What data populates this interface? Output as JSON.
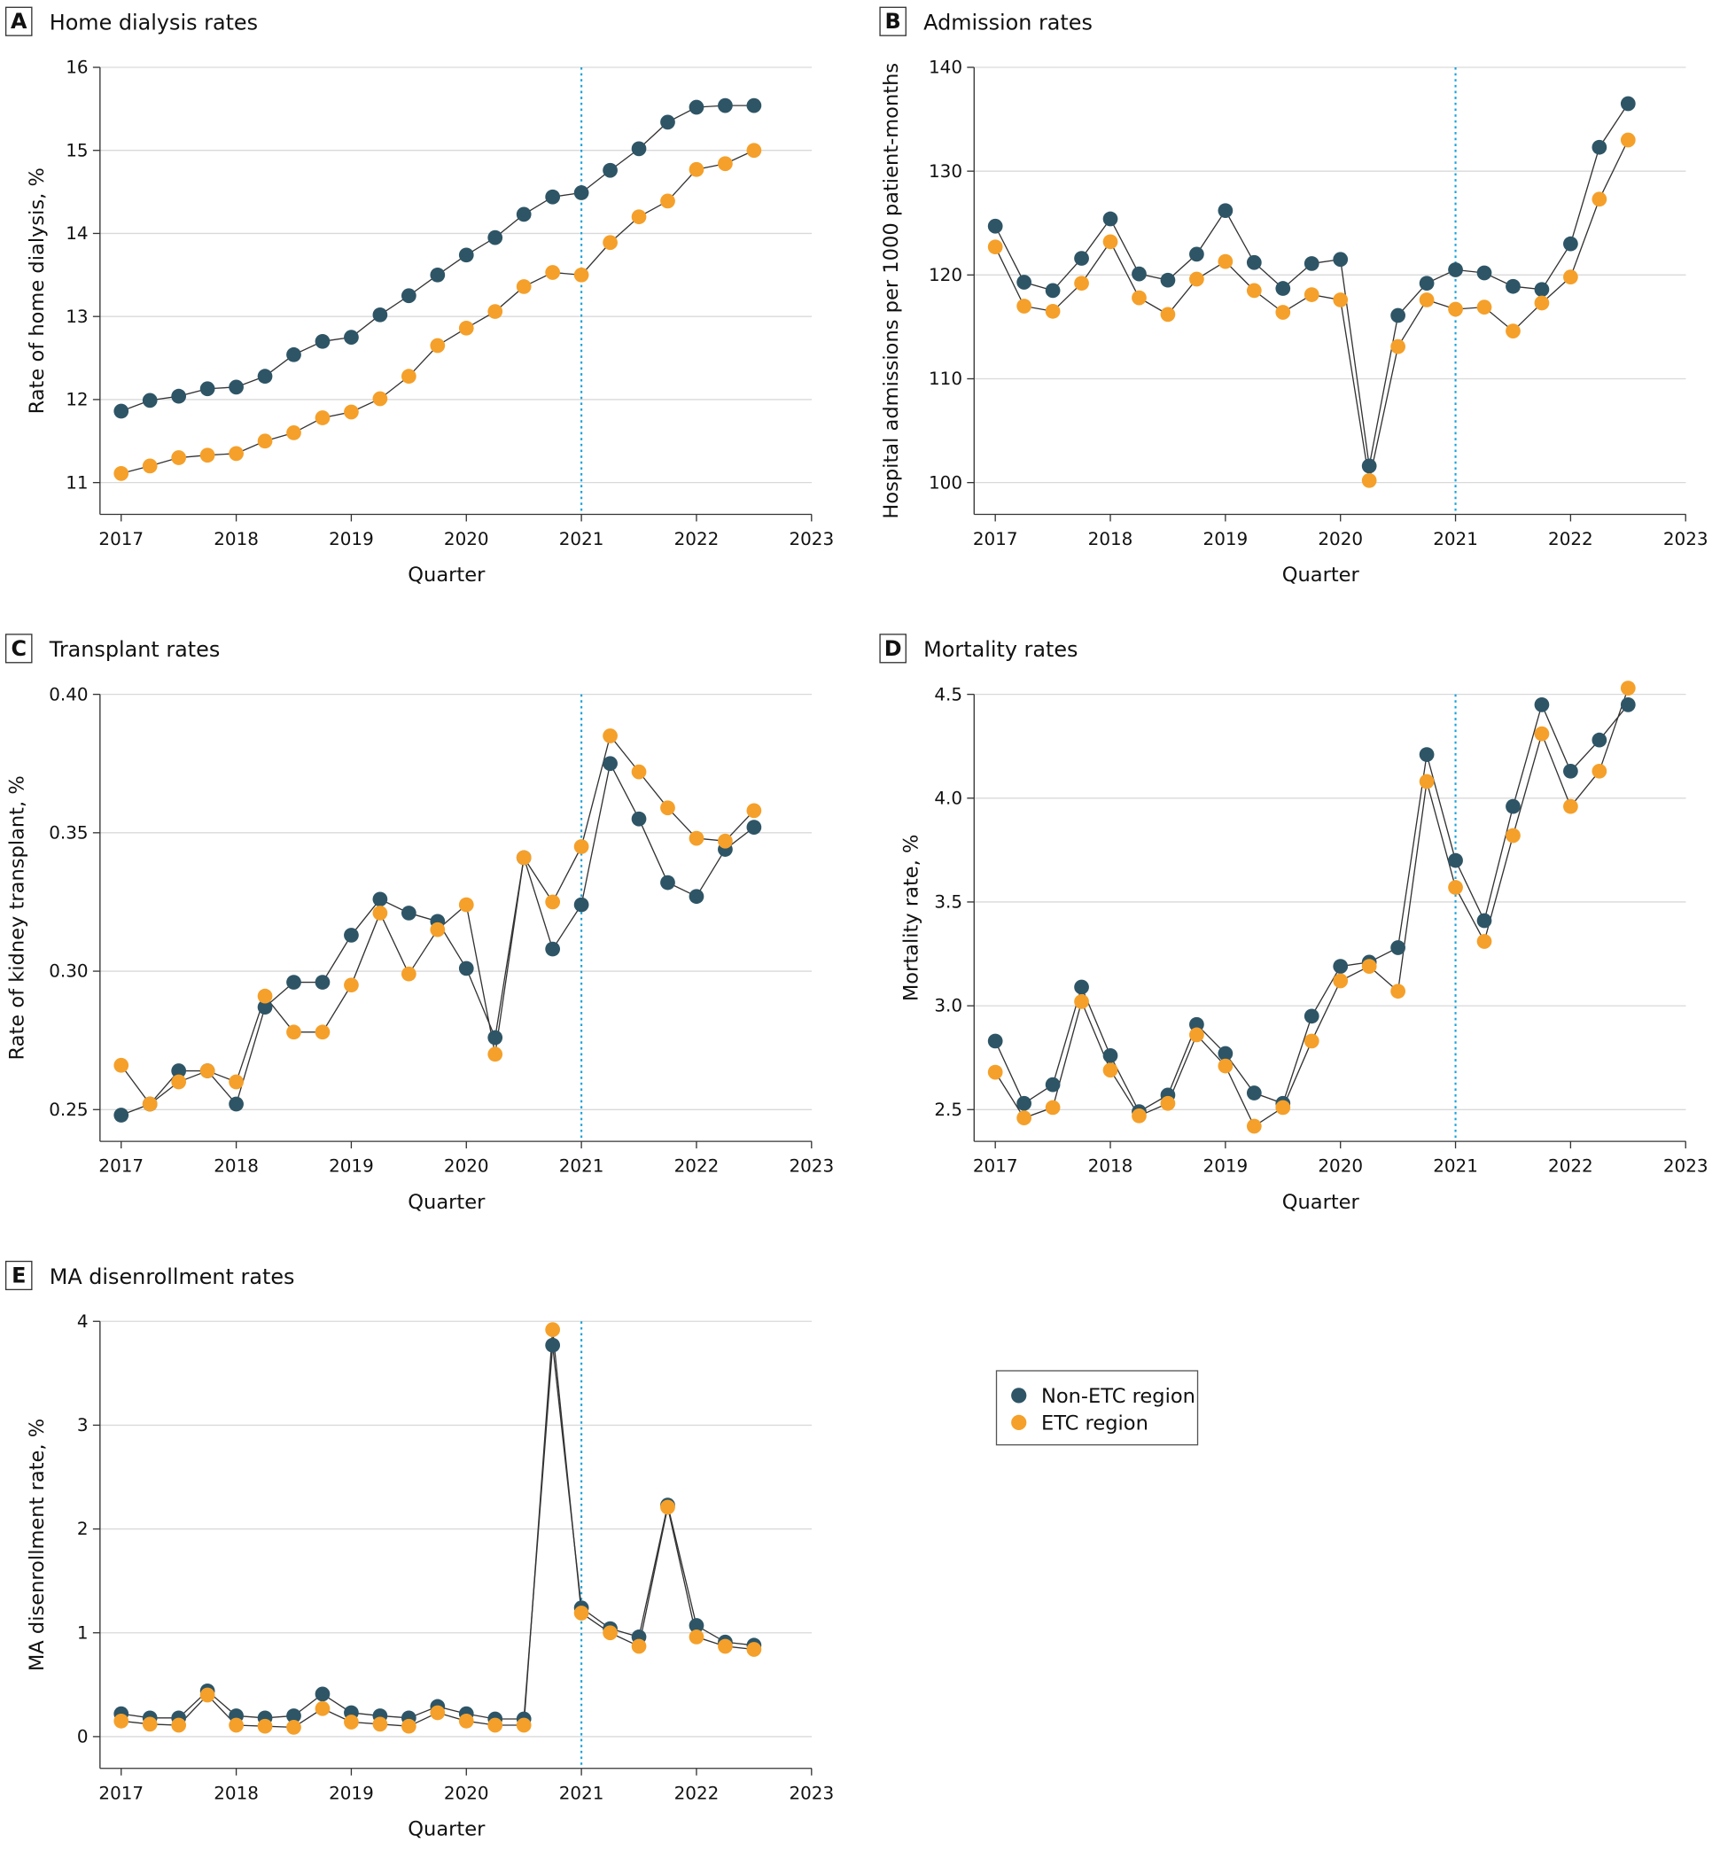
{
  "colors": {
    "non_etc": "#2e5566",
    "etc": "#f5a02a",
    "policy_line": "#1aa3dc",
    "grid": "#d9d9d9"
  },
  "legend": {
    "items": [
      {
        "label": "Non-ETC region",
        "color": "#2e5566"
      },
      {
        "label": "ETC region",
        "color": "#f5a02a"
      }
    ]
  },
  "chart_data": [
    {
      "panel": "A",
      "title": "Home dialysis rates",
      "type": "line",
      "xlabel": "Quarter",
      "ylabel": "Rate of home dialysis, %",
      "xticks": [
        2017,
        2018,
        2019,
        2020,
        2021,
        2022,
        2023
      ],
      "yticks": [
        11,
        12,
        13,
        14,
        15,
        16
      ],
      "ylim": [
        11,
        16
      ],
      "policy_x": 2021,
      "x": [
        2017,
        2017.25,
        2017.5,
        2017.75,
        2018,
        2018.25,
        2018.5,
        2018.75,
        2019,
        2019.25,
        2019.5,
        2019.75,
        2020,
        2020.25,
        2020.5,
        2020.75,
        2021,
        2021.25,
        2021.5,
        2021.75,
        2022,
        2022.25,
        2022.5
      ],
      "series": [
        {
          "name": "Non-ETC region",
          "values": [
            11.86,
            11.99,
            12.04,
            12.13,
            12.15,
            12.28,
            12.54,
            12.7,
            12.75,
            13.02,
            13.25,
            13.5,
            13.74,
            13.95,
            14.23,
            14.44,
            14.49,
            14.76,
            15.02,
            15.34,
            15.52,
            15.54,
            15.54
          ]
        },
        {
          "name": "ETC region",
          "values": [
            11.11,
            11.2,
            11.3,
            11.33,
            11.35,
            11.5,
            11.6,
            11.78,
            11.85,
            12.01,
            12.28,
            12.65,
            12.86,
            13.06,
            13.36,
            13.53,
            13.5,
            13.89,
            14.2,
            14.39,
            14.77,
            14.84,
            15.0
          ]
        }
      ]
    },
    {
      "panel": "B",
      "title": "Admission rates",
      "type": "line",
      "xlabel": "Quarter",
      "ylabel": "Hospital admissions per 1000 patient-months",
      "xticks": [
        2017,
        2018,
        2019,
        2020,
        2021,
        2022,
        2023
      ],
      "yticks": [
        100,
        110,
        120,
        130,
        140
      ],
      "ylim": [
        100,
        140
      ],
      "policy_x": 2021,
      "x": [
        2017,
        2017.25,
        2017.5,
        2017.75,
        2018,
        2018.25,
        2018.5,
        2018.75,
        2019,
        2019.25,
        2019.5,
        2019.75,
        2020,
        2020.25,
        2020.5,
        2020.75,
        2021,
        2021.25,
        2021.5,
        2021.75,
        2022,
        2022.25,
        2022.5
      ],
      "series": [
        {
          "name": "Non-ETC region",
          "values": [
            124.7,
            119.3,
            118.5,
            121.6,
            125.4,
            120.1,
            119.5,
            122.0,
            126.2,
            121.2,
            118.7,
            121.1,
            121.5,
            101.6,
            116.1,
            119.2,
            120.5,
            120.2,
            118.9,
            118.6,
            123.0,
            132.3,
            136.5
          ]
        },
        {
          "name": "ETC region",
          "values": [
            122.7,
            117.0,
            116.5,
            119.2,
            123.2,
            117.8,
            116.2,
            119.6,
            121.3,
            118.5,
            116.4,
            118.1,
            117.6,
            100.2,
            113.1,
            117.6,
            116.7,
            116.9,
            114.6,
            117.3,
            119.8,
            127.3,
            133.0
          ]
        }
      ]
    },
    {
      "panel": "C",
      "title": "Transplant rates",
      "type": "line",
      "xlabel": "Quarter",
      "ylabel": "Rate of kidney transplant, %",
      "xticks": [
        2017,
        2018,
        2019,
        2020,
        2021,
        2022,
        2023
      ],
      "yticks": [
        "0.25",
        "0.30",
        "0.35",
        "0.40"
      ],
      "ylim": [
        0.25,
        0.4
      ],
      "policy_x": 2021,
      "x": [
        2017,
        2017.25,
        2017.5,
        2017.75,
        2018,
        2018.25,
        2018.5,
        2018.75,
        2019,
        2019.25,
        2019.5,
        2019.75,
        2020,
        2020.25,
        2020.5,
        2020.75,
        2021,
        2021.25,
        2021.5,
        2021.75,
        2022,
        2022.25,
        2022.5
      ],
      "series": [
        {
          "name": "Non-ETC region",
          "values": [
            0.248,
            0.252,
            0.264,
            0.264,
            0.252,
            0.287,
            0.296,
            0.296,
            0.313,
            0.326,
            0.321,
            0.318,
            0.301,
            0.276,
            0.341,
            0.308,
            0.324,
            0.375,
            0.355,
            0.332,
            0.327,
            0.344,
            0.352
          ]
        },
        {
          "name": "ETC region",
          "values": [
            0.266,
            0.252,
            0.26,
            0.264,
            0.26,
            0.291,
            0.278,
            0.278,
            0.295,
            0.321,
            0.299,
            0.315,
            0.324,
            0.27,
            0.341,
            0.325,
            0.345,
            0.385,
            0.372,
            0.359,
            0.348,
            0.347,
            0.358
          ]
        }
      ]
    },
    {
      "panel": "D",
      "title": "Mortality rates",
      "type": "line",
      "xlabel": "Quarter",
      "ylabel": "Mortality rate, %",
      "xticks": [
        2017,
        2018,
        2019,
        2020,
        2021,
        2022,
        2023
      ],
      "yticks": [
        "2.5",
        "3.0",
        "3.5",
        "4.0",
        "4.5"
      ],
      "ylim": [
        2.5,
        4.5
      ],
      "policy_x": 2021,
      "x": [
        2017,
        2017.25,
        2017.5,
        2017.75,
        2018,
        2018.25,
        2018.5,
        2018.75,
        2019,
        2019.25,
        2019.5,
        2019.75,
        2020,
        2020.25,
        2020.5,
        2020.75,
        2021,
        2021.25,
        2021.5,
        2021.75,
        2022,
        2022.25,
        2022.5
      ],
      "series": [
        {
          "name": "Non-ETC region",
          "values": [
            2.83,
            2.53,
            2.62,
            3.09,
            2.76,
            2.49,
            2.57,
            2.91,
            2.77,
            2.58,
            2.53,
            2.95,
            3.19,
            3.21,
            3.28,
            4.21,
            3.7,
            3.41,
            3.96,
            4.45,
            4.13,
            4.28,
            4.45
          ]
        },
        {
          "name": "ETC region",
          "values": [
            2.68,
            2.46,
            2.51,
            3.02,
            2.69,
            2.47,
            2.53,
            2.86,
            2.71,
            2.42,
            2.51,
            2.83,
            3.12,
            3.19,
            3.07,
            4.08,
            3.57,
            3.31,
            3.82,
            4.31,
            3.96,
            4.13,
            4.53
          ]
        }
      ]
    },
    {
      "panel": "E",
      "title": "MA disenrollment rates",
      "type": "line",
      "xlabel": "Quarter",
      "ylabel": "MA disenrollment rate, %",
      "xticks": [
        2017,
        2018,
        2019,
        2020,
        2021,
        2022,
        2023
      ],
      "yticks": [
        0,
        1,
        2,
        3,
        4
      ],
      "ylim": [
        0,
        4
      ],
      "policy_x": 2021,
      "x": [
        2017,
        2017.25,
        2017.5,
        2017.75,
        2018,
        2018.25,
        2018.5,
        2018.75,
        2019,
        2019.25,
        2019.5,
        2019.75,
        2020,
        2020.25,
        2020.5,
        2020.75,
        2021,
        2021.25,
        2021.5,
        2021.75,
        2022,
        2022.25,
        2022.5
      ],
      "series": [
        {
          "name": "Non-ETC region",
          "values": [
            0.22,
            0.18,
            0.18,
            0.44,
            0.2,
            0.18,
            0.2,
            0.41,
            0.23,
            0.2,
            0.18,
            0.29,
            0.22,
            0.17,
            0.17,
            3.77,
            1.24,
            1.04,
            0.96,
            2.23,
            1.07,
            0.91,
            0.88
          ]
        },
        {
          "name": "ETC region",
          "values": [
            0.15,
            0.12,
            0.11,
            0.4,
            0.11,
            0.1,
            0.09,
            0.27,
            0.14,
            0.12,
            0.1,
            0.23,
            0.15,
            0.11,
            0.11,
            3.92,
            1.19,
            1.0,
            0.87,
            2.21,
            0.96,
            0.87,
            0.84
          ]
        }
      ]
    }
  ]
}
